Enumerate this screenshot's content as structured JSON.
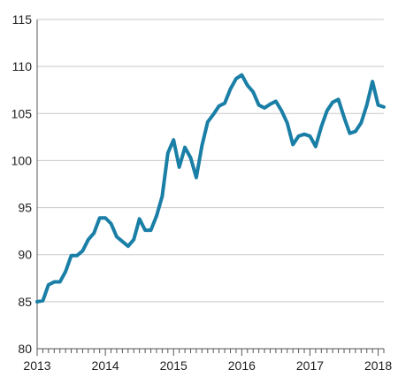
{
  "chart_data": {
    "type": "line",
    "title": "",
    "xlabel": "",
    "ylabel": "",
    "x_tick_labels": [
      "2013",
      "2014",
      "2015",
      "2016",
      "2017",
      "2018"
    ],
    "y_tick_labels": [
      "80",
      "85",
      "90",
      "95",
      "100",
      "105",
      "110",
      "115"
    ],
    "y_ticks": [
      80,
      85,
      90,
      95,
      100,
      105,
      110,
      115
    ],
    "ylim": [
      80,
      115
    ],
    "xlim": [
      "2013-01",
      "2018-02"
    ],
    "grid": "horizontal",
    "legend": "none",
    "line_color": "#1a7fa6",
    "grid_color": "#c8c8c8",
    "series": [
      {
        "x": [
          "2013-01",
          "2013-02",
          "2013-03",
          "2013-04",
          "2013-05",
          "2013-06",
          "2013-07",
          "2013-08",
          "2013-09",
          "2013-10",
          "2013-11",
          "2013-12",
          "2014-01",
          "2014-02",
          "2014-03",
          "2014-04",
          "2014-05",
          "2014-06",
          "2014-07",
          "2014-08",
          "2014-09",
          "2014-10",
          "2014-11",
          "2014-12",
          "2015-01",
          "2015-02",
          "2015-03",
          "2015-04",
          "2015-05",
          "2015-06",
          "2015-07",
          "2015-08",
          "2015-09",
          "2015-10",
          "2015-11",
          "2015-12",
          "2016-01",
          "2016-02",
          "2016-03",
          "2016-04",
          "2016-05",
          "2016-06",
          "2016-07",
          "2016-08",
          "2016-09",
          "2016-10",
          "2016-11",
          "2016-12",
          "2017-01",
          "2017-02",
          "2017-03",
          "2017-04",
          "2017-05",
          "2017-06",
          "2017-07",
          "2017-08",
          "2017-09",
          "2017-10",
          "2017-11",
          "2017-12",
          "2018-01",
          "2018-02"
        ],
        "values": [
          85.0,
          85.1,
          86.8,
          87.1,
          87.1,
          88.2,
          89.9,
          89.9,
          90.4,
          91.6,
          92.3,
          93.9,
          93.9,
          93.3,
          91.9,
          91.4,
          90.9,
          91.6,
          93.8,
          92.6,
          92.6,
          94.1,
          96.2,
          100.8,
          102.2,
          99.3,
          101.4,
          100.3,
          98.2,
          101.6,
          104.1,
          104.9,
          105.8,
          106.1,
          107.6,
          108.7,
          109.1,
          108.0,
          107.3,
          105.9,
          105.6,
          106.0,
          106.3,
          105.3,
          104.0,
          101.7,
          102.6,
          102.8,
          102.6,
          101.5,
          103.6,
          105.3,
          106.2,
          106.5,
          104.6,
          102.9,
          103.1,
          104.0,
          105.9,
          108.4,
          105.9,
          105.7
        ]
      }
    ]
  }
}
